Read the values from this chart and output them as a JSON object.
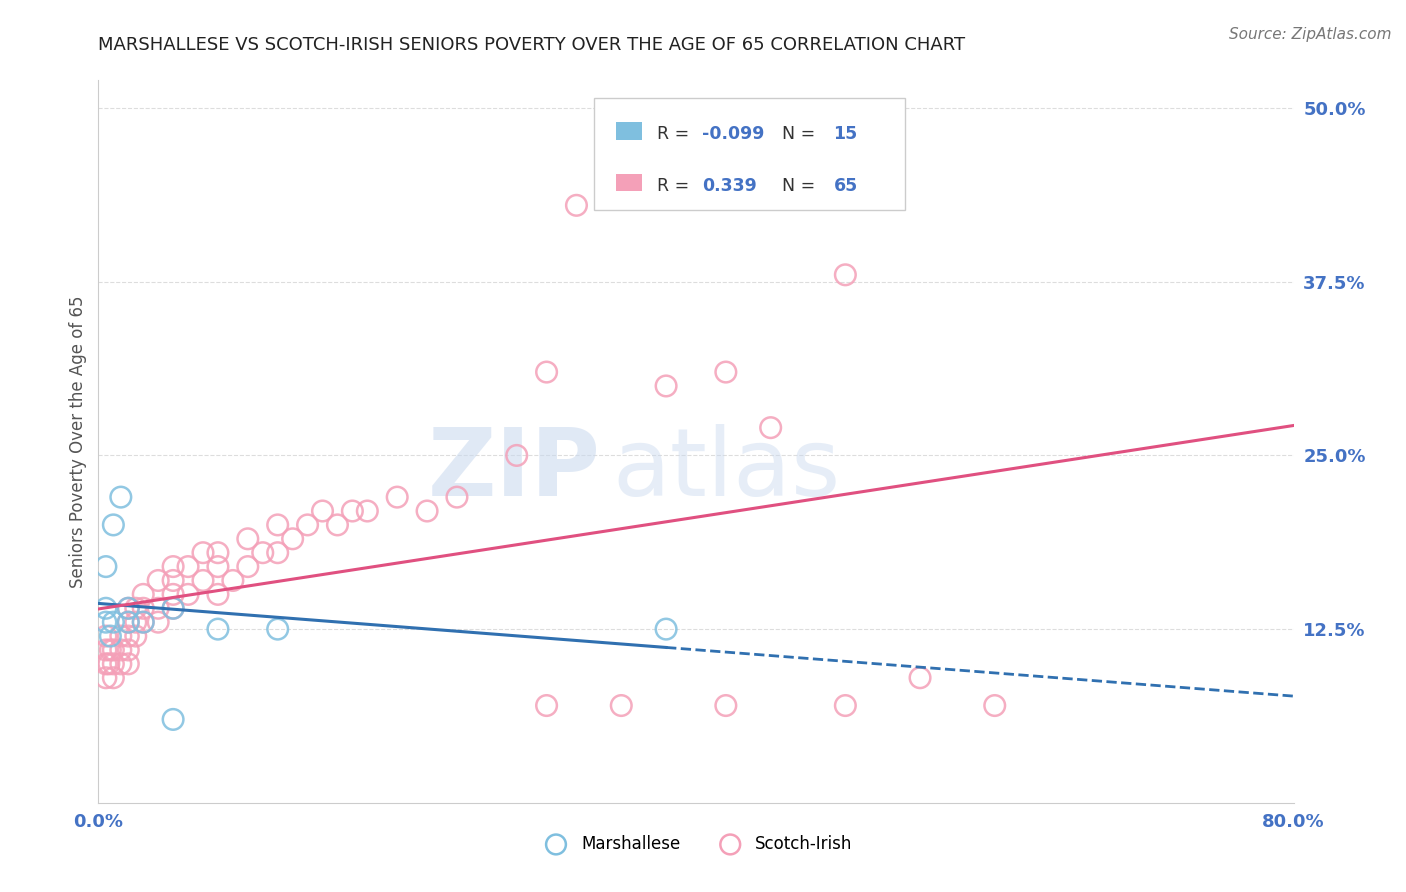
{
  "title": "MARSHALLESE VS SCOTCH-IRISH SENIORS POVERTY OVER THE AGE OF 65 CORRELATION CHART",
  "source": "Source: ZipAtlas.com",
  "ylabel": "Seniors Poverty Over the Age of 65",
  "yticks": [
    0.0,
    0.125,
    0.25,
    0.375,
    0.5
  ],
  "ytick_labels": [
    "",
    "12.5%",
    "25.0%",
    "37.5%",
    "50.0%"
  ],
  "xlim": [
    0.0,
    0.8
  ],
  "ylim": [
    0.0,
    0.52
  ],
  "marshallese_R": -0.099,
  "marshallese_N": 15,
  "scotchirish_R": 0.339,
  "scotchirish_N": 65,
  "marshallese_color": "#7fbfdf",
  "scotchirish_color": "#f4a0b8",
  "marshallese_line_color": "#3070b0",
  "scotchirish_line_color": "#e05080",
  "watermark_zip": "ZIP",
  "watermark_atlas": "atlas",
  "legend_label_1": "Marshallese",
  "legend_label_2": "Scotch-Irish",
  "marshallese_x": [
    0.005,
    0.005,
    0.005,
    0.008,
    0.01,
    0.01,
    0.015,
    0.02,
    0.02,
    0.03,
    0.05,
    0.08,
    0.38,
    0.05,
    0.12
  ],
  "marshallese_y": [
    0.17,
    0.14,
    0.13,
    0.12,
    0.13,
    0.2,
    0.22,
    0.14,
    0.13,
    0.13,
    0.14,
    0.125,
    0.125,
    0.06,
    0.125
  ],
  "scotchirish_x": [
    0.005,
    0.005,
    0.005,
    0.005,
    0.007,
    0.008,
    0.01,
    0.01,
    0.01,
    0.015,
    0.015,
    0.015,
    0.02,
    0.02,
    0.02,
    0.02,
    0.02,
    0.025,
    0.025,
    0.025,
    0.03,
    0.03,
    0.03,
    0.04,
    0.04,
    0.04,
    0.05,
    0.05,
    0.05,
    0.05,
    0.06,
    0.06,
    0.07,
    0.07,
    0.08,
    0.08,
    0.08,
    0.09,
    0.1,
    0.1,
    0.11,
    0.12,
    0.12,
    0.13,
    0.14,
    0.15,
    0.16,
    0.17,
    0.18,
    0.2,
    0.22,
    0.24,
    0.28,
    0.3,
    0.32,
    0.38,
    0.42,
    0.45,
    0.5,
    0.55,
    0.6,
    0.3,
    0.35,
    0.42,
    0.5
  ],
  "scotchirish_y": [
    0.09,
    0.1,
    0.11,
    0.12,
    0.1,
    0.11,
    0.09,
    0.1,
    0.11,
    0.1,
    0.11,
    0.12,
    0.1,
    0.11,
    0.12,
    0.13,
    0.14,
    0.12,
    0.13,
    0.14,
    0.13,
    0.14,
    0.15,
    0.13,
    0.14,
    0.16,
    0.14,
    0.15,
    0.16,
    0.17,
    0.15,
    0.17,
    0.16,
    0.18,
    0.15,
    0.17,
    0.18,
    0.16,
    0.17,
    0.19,
    0.18,
    0.18,
    0.2,
    0.19,
    0.2,
    0.21,
    0.2,
    0.21,
    0.21,
    0.22,
    0.21,
    0.22,
    0.25,
    0.31,
    0.43,
    0.3,
    0.31,
    0.27,
    0.38,
    0.09,
    0.07,
    0.07,
    0.07,
    0.07,
    0.07
  ],
  "grid_color": "#dddddd",
  "background_color": "#ffffff",
  "title_color": "#222222",
  "source_color": "#777777",
  "axis_label_color": "#4472c4",
  "ylabel_color": "#555555"
}
